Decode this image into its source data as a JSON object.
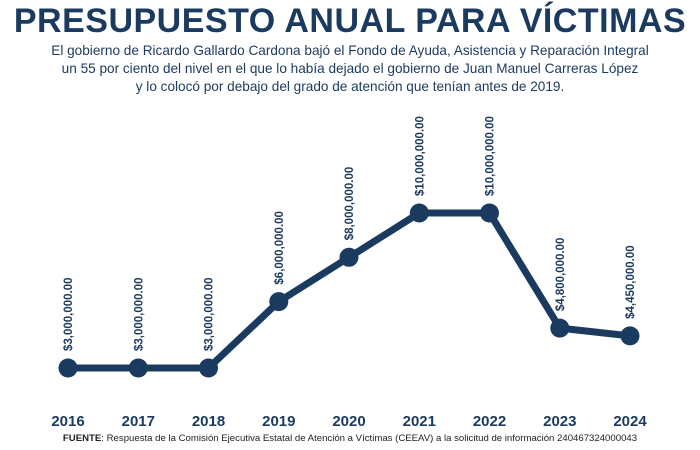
{
  "header": {
    "title": "PRESUPUESTO ANUAL PARA VÍCTIMAS",
    "subtitle_lines": [
      "El gobierno de Ricardo Gallardo Cardona bajó el Fondo de Ayuda, Asistencia y Reparación Integral",
      "un 55 por ciento del nivel en el que lo había dejado el gobierno de Juan Manuel Carreras López",
      "y lo colocó por debajo del grado de atención que tenían antes de 2019."
    ]
  },
  "footer": {
    "source_label": "FUENTE",
    "source_text": ": Respuesta de la Comisión Ejecutiva Estatal de Atención a Víctimas (CEEAV) a la solicitud de información 240467324000043"
  },
  "colors": {
    "primary": "#1b3a5f"
  },
  "chart_data": {
    "type": "line",
    "title": "PRESUPUESTO ANUAL PARA VÍCTIMAS",
    "xlabel": "",
    "ylabel": "",
    "categories": [
      "2016",
      "2017",
      "2018",
      "2019",
      "2020",
      "2021",
      "2022",
      "2023",
      "2024"
    ],
    "values": [
      3000000,
      3000000,
      3000000,
      6000000,
      8000000,
      10000000,
      10000000,
      4800000,
      4450000
    ],
    "data_labels": [
      "$3,000,000.00",
      "$3,000,000.00",
      "$3,000,000.00",
      "$6,000,000.00",
      "$8,000,000.00",
      "$10,000,000.00",
      "$10,000,000.00",
      "$4,800,000.00",
      "$4,450,000.00"
    ],
    "ylim": [
      0,
      12000000
    ],
    "grid": false,
    "legend": "none"
  }
}
